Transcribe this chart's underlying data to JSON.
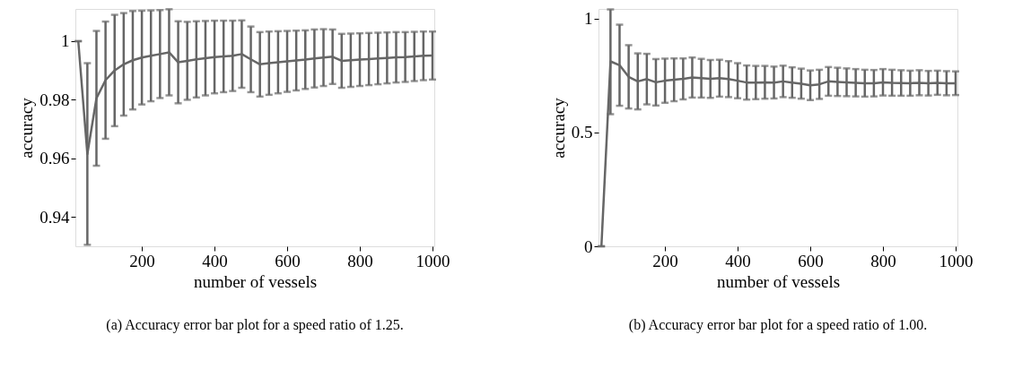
{
  "chart_data": [
    {
      "type": "line",
      "xlabel": "number of vessels",
      "ylabel": "accuracy",
      "annotations": [
        "(a) Accuracy error bar plot for a speed ratio of 1.25."
      ],
      "x": [
        25,
        50,
        75,
        100,
        125,
        150,
        175,
        200,
        225,
        250,
        275,
        300,
        325,
        350,
        375,
        400,
        425,
        450,
        475,
        500,
        525,
        550,
        575,
        600,
        625,
        650,
        675,
        700,
        725,
        750,
        775,
        800,
        825,
        850,
        875,
        900,
        925,
        950,
        975,
        1000
      ],
      "series": [
        {
          "color": "#666666",
          "values": [
            1.0,
            0.9615,
            0.9805,
            0.9867,
            0.99,
            0.9921,
            0.9935,
            0.9944,
            0.995,
            0.9956,
            0.9962,
            0.9928,
            0.9933,
            0.9938,
            0.9942,
            0.9946,
            0.9948,
            0.995,
            0.9956,
            0.9938,
            0.9921,
            0.9925,
            0.9928,
            0.9931,
            0.9934,
            0.9937,
            0.9941,
            0.9944,
            0.9947,
            0.9933,
            0.9935,
            0.9937,
            0.9939,
            0.9941,
            0.9943,
            0.9945,
            0.9946,
            0.9948,
            0.995,
            0.9951
          ],
          "errors": [
            0,
            0.031,
            0.023,
            0.02,
            0.019,
            0.0175,
            0.0168,
            0.016,
            0.0155,
            0.015,
            0.0147,
            0.014,
            0.0133,
            0.013,
            0.0127,
            0.0124,
            0.0122,
            0.012,
            0.0115,
            0.0112,
            0.011,
            0.0108,
            0.0106,
            0.0104,
            0.0102,
            0.01,
            0.0099,
            0.0097,
            0.0093,
            0.0092,
            0.0091,
            0.009,
            0.0089,
            0.0088,
            0.0087,
            0.0086,
            0.0085,
            0.0084,
            0.0083,
            0.0082
          ]
        }
      ],
      "xlim": [
        17,
        1005
      ],
      "ylim": [
        0.93,
        1.011
      ],
      "xticks": [
        200,
        400,
        600,
        800,
        1000
      ],
      "yticks": [
        0.94,
        0.96,
        0.98,
        1
      ]
    },
    {
      "type": "line",
      "xlabel": "number of vessels",
      "ylabel": "accuracy",
      "annotations": [
        "(b) Accuracy error bar plot for a speed ratio of 1.00."
      ],
      "x": [
        25,
        50,
        75,
        100,
        125,
        150,
        175,
        200,
        225,
        250,
        275,
        300,
        325,
        350,
        375,
        400,
        425,
        450,
        475,
        500,
        525,
        550,
        575,
        600,
        625,
        650,
        675,
        700,
        725,
        750,
        775,
        800,
        825,
        850,
        875,
        900,
        925,
        950,
        975,
        1000
      ],
      "series": [
        {
          "color": "#666666",
          "values": [
            0,
            0.812,
            0.795,
            0.744,
            0.724,
            0.734,
            0.72,
            0.727,
            0.731,
            0.735,
            0.741,
            0.738,
            0.735,
            0.738,
            0.734,
            0.727,
            0.719,
            0.719,
            0.72,
            0.719,
            0.724,
            0.719,
            0.714,
            0.707,
            0.711,
            0.724,
            0.722,
            0.72,
            0.718,
            0.716,
            0.716,
            0.72,
            0.718,
            0.717,
            0.716,
            0.718,
            0.716,
            0.718,
            0.716,
            0.716
          ],
          "errors": [
            0,
            [
              0.58,
              1.04
            ],
            0.178,
            0.139,
            0.123,
            0.111,
            0.102,
            0.097,
            0.094,
            0.09,
            0.088,
            0.085,
            0.083,
            0.081,
            0.079,
            0.077,
            0.075,
            0.073,
            0.072,
            0.07,
            0.069,
            0.067,
            0.066,
            0.065,
            0.064,
            0.063,
            0.062,
            0.061,
            0.06,
            0.059,
            0.058,
            0.058,
            0.057,
            0.056,
            0.055,
            0.055,
            0.054,
            0.053,
            0.053,
            0.052
          ]
        }
      ],
      "xlim": [
        17,
        1005
      ],
      "ylim": [
        0,
        1.042
      ],
      "xticks": [
        200,
        400,
        600,
        800,
        1000
      ],
      "yticks": [
        0,
        0.5,
        1
      ]
    }
  ]
}
